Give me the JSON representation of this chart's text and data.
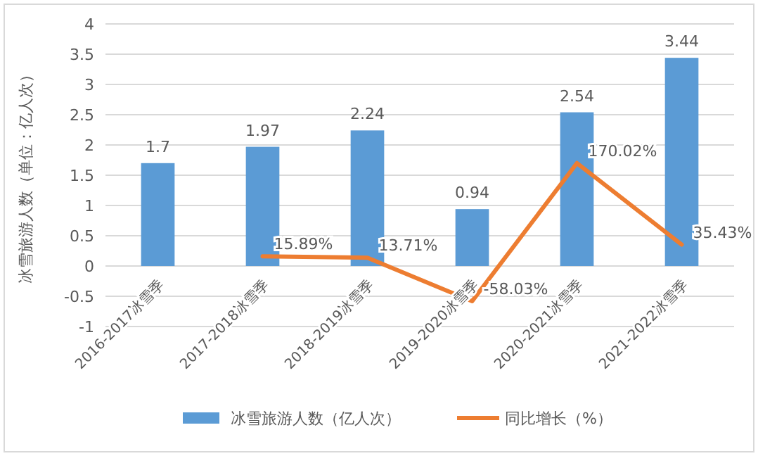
{
  "chart_data": {
    "type": "bar",
    "ylabel": "冰雪旅游人数（单位：亿人次）",
    "categories": [
      "2016-2017冰雪季",
      "2017-2018冰雪季",
      "2018-2019冰雪季",
      "2019-2020冰雪季",
      "2020-2021冰雪季",
      "2021-2022冰雪季"
    ],
    "series": [
      {
        "name": "冰雪旅游人数（亿人次）",
        "color": "#5b9bd5",
        "values": [
          1.7,
          1.97,
          2.24,
          0.94,
          2.54,
          3.44
        ],
        "value_labels": [
          "1.7",
          "1.97",
          "2.24",
          "0.94",
          "2.54",
          "3.44"
        ]
      },
      {
        "name": "同比增长（%）",
        "type": "line",
        "color": "#ed7d31",
        "values": [
          null,
          0.1589,
          0.1371,
          -0.5803,
          1.7002,
          0.3543
        ],
        "value_labels": [
          null,
          "15.89%",
          "13.71%",
          "-58.03%",
          "170.02%",
          "35.43%"
        ]
      }
    ],
    "ylim": [
      -1,
      4
    ],
    "yticks": [
      -1,
      -0.5,
      0,
      0.5,
      1,
      1.5,
      2,
      2.5,
      3,
      3.5,
      4
    ],
    "grid": "y",
    "legend": "bottom"
  }
}
